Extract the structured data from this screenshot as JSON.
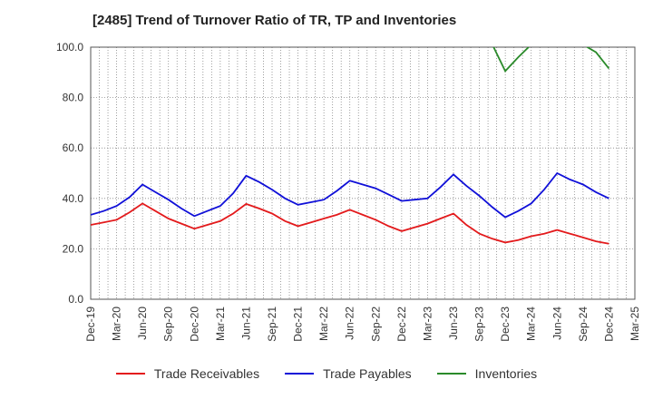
{
  "chart_data": {
    "type": "line",
    "title": "[2485]  Trend of Turnover Ratio of TR, TP and Inventories",
    "ylim": [
      0,
      100
    ],
    "yticks": [
      "0.0",
      "20.0",
      "40.0",
      "60.0",
      "80.0",
      "100.0"
    ],
    "xtick_labels": [
      "Dec-19",
      "Mar-20",
      "Jun-20",
      "Sep-20",
      "Dec-20",
      "Mar-21",
      "Jun-21",
      "Sep-21",
      "Dec-21",
      "Mar-22",
      "Jun-22",
      "Sep-22",
      "Dec-22",
      "Mar-23",
      "Jun-23",
      "Sep-23",
      "Dec-23",
      "Mar-24",
      "Jun-24",
      "Sep-24",
      "Dec-24",
      "Mar-25"
    ],
    "grid": true,
    "legend_position": "bottom",
    "series": [
      {
        "name": "Trade Receivables",
        "color": "#e31a1c",
        "values": [
          29.5,
          30.5,
          31.5,
          34.5,
          38.0,
          35.0,
          32.0,
          30.0,
          28.0,
          29.5,
          31.0,
          34.0,
          37.8,
          36.0,
          34.0,
          31.0,
          29.0,
          30.5,
          32.0,
          33.5,
          35.5,
          33.5,
          31.5,
          29.0,
          27.0,
          28.5,
          30.0,
          32.0,
          34.0,
          29.5,
          26.0,
          24.0,
          22.5,
          23.5,
          25.0,
          26.0,
          27.5,
          26.0,
          24.5,
          23.0,
          22.0
        ]
      },
      {
        "name": "Trade Payables",
        "color": "#1010d8",
        "values": [
          33.5,
          35.0,
          37.0,
          40.5,
          45.5,
          42.5,
          39.5,
          36.0,
          33.0,
          35.0,
          37.0,
          42.0,
          49.0,
          46.5,
          43.5,
          40.0,
          37.5,
          38.5,
          39.5,
          43.0,
          47.0,
          45.5,
          44.0,
          41.5,
          39.0,
          39.5,
          40.0,
          44.5,
          49.5,
          45.0,
          41.0,
          36.5,
          32.5,
          35.0,
          38.0,
          43.5,
          50.0,
          47.5,
          45.5,
          42.5,
          40.0
        ]
      },
      {
        "name": "Inventories",
        "color": "#2a8a2a",
        "values": [
          null,
          null,
          null,
          null,
          null,
          null,
          null,
          null,
          null,
          null,
          null,
          null,
          null,
          null,
          null,
          null,
          null,
          null,
          null,
          null,
          null,
          null,
          null,
          null,
          null,
          null,
          null,
          null,
          null,
          null,
          null,
          101.0,
          90.5,
          96.0,
          101.0,
          106.0,
          109.0,
          105.0,
          101.0,
          98.0,
          91.5
        ]
      }
    ]
  }
}
